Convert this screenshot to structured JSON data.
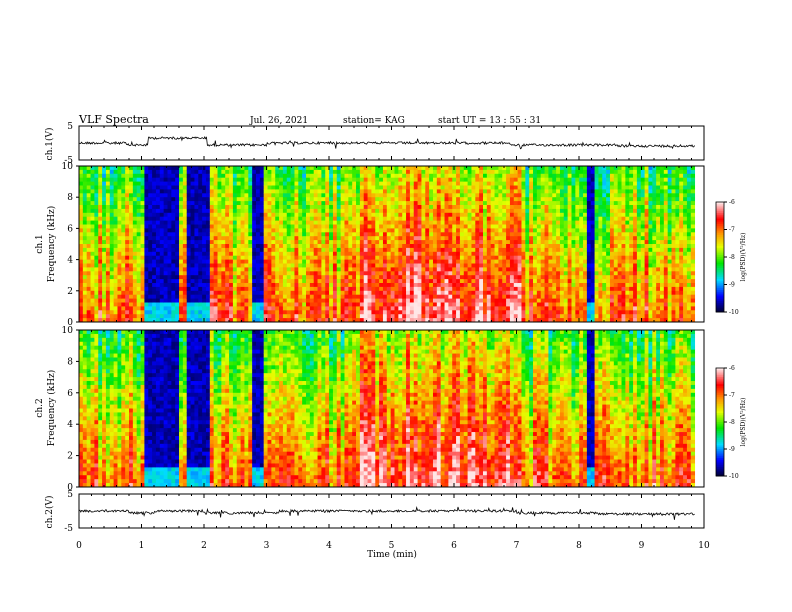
{
  "header": {
    "title": "VLF Spectra",
    "date": "Jul. 26, 2021",
    "station": "station= KAG",
    "start": "start  UT  =   13 : 55 : 31"
  },
  "chart_data": {
    "type": "heatmap",
    "xlabel": "Time  (min)",
    "xlim": [
      0,
      10
    ],
    "x_ticks": [
      "0",
      "1",
      "2",
      "3",
      "4",
      "5",
      "6",
      "7",
      "8",
      "9",
      "10"
    ],
    "panels": [
      {
        "id": "ch1v",
        "kind": "line",
        "ylabel": "ch.1(V)",
        "ylim": [
          -5,
          5
        ],
        "y_ticks": [
          "5",
          "-5"
        ]
      },
      {
        "id": "ch1",
        "kind": "spectrogram",
        "ylabel": "ch.1\nFrequency  (kHz)",
        "ylim": [
          0,
          10
        ],
        "y_ticks": [
          "0",
          "2",
          "4",
          "6",
          "8",
          "10"
        ],
        "colorbar": {
          "label": "log(PSD)(V²/Hz)",
          "range": [
            -10,
            -6
          ],
          "ticks": [
            "-6",
            "-7",
            "-8",
            "-9",
            "-10"
          ]
        }
      },
      {
        "id": "ch2",
        "kind": "spectrogram",
        "ylabel": "ch.2\nFrequency  (kHz)",
        "ylim": [
          0,
          10
        ],
        "y_ticks": [
          "0",
          "2",
          "4",
          "6",
          "8",
          "10"
        ],
        "colorbar": {
          "label": "log(PSD)(V²/Hz)",
          "range": [
            -10,
            -6
          ],
          "ticks": [
            "-6",
            "-7",
            "-8",
            "-9",
            "-10"
          ]
        }
      },
      {
        "id": "ch2v",
        "kind": "line",
        "ylabel": "ch.2(V)",
        "ylim": [
          -5,
          5
        ],
        "y_ticks": [
          "5",
          "-5"
        ]
      }
    ],
    "colormap": [
      "#ffffff",
      "#ff0000",
      "#ff8800",
      "#ffff00",
      "#00ff00",
      "#00ffff",
      "#0000ff",
      "#000033"
    ],
    "dark_bands_min": [
      [
        1.05,
        1.6
      ],
      [
        1.75,
        2.1
      ],
      [
        2.75,
        2.95
      ],
      [
        8.12,
        8.25
      ]
    ],
    "data_end_min": 9.85
  }
}
